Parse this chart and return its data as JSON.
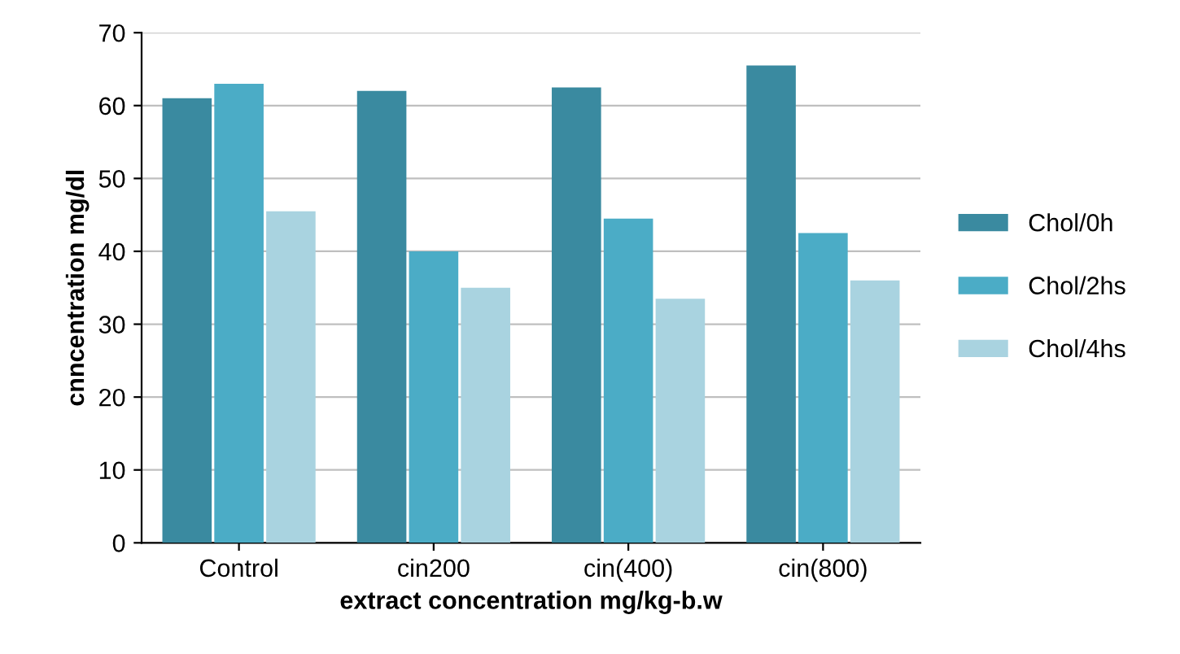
{
  "chart_data": {
    "type": "bar",
    "xlabel": "extract concentration mg/kg-b.w",
    "ylabel": "cnncentration mg/dl",
    "categories": [
      "Control",
      "cin200",
      "cin(400)",
      "cin(800)"
    ],
    "series": [
      {
        "name": "Chol/0h",
        "color": "#3a8aa0",
        "values": [
          61,
          62,
          62.5,
          65.5
        ]
      },
      {
        "name": "Chol/2hs",
        "color": "#4bacc6",
        "values": [
          63,
          40,
          44.5,
          42.5
        ]
      },
      {
        "name": "Chol/4hs",
        "color": "#a9d3e0",
        "values": [
          45.5,
          35,
          33.5,
          36
        ]
      }
    ],
    "ylim": [
      0,
      70
    ],
    "yticks": [
      0,
      10,
      20,
      30,
      40,
      50,
      60,
      70
    ],
    "grid": "y",
    "legend": "right"
  }
}
